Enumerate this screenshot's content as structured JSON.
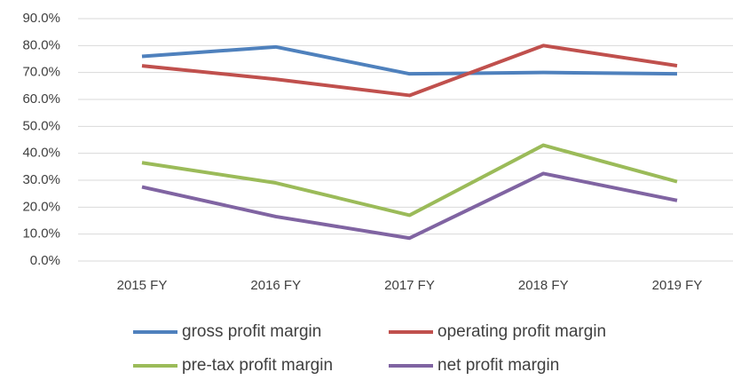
{
  "chart_data": {
    "type": "line",
    "categories": [
      "2015 FY",
      "2016 FY",
      "2017 FY",
      "2018 FY",
      "2019 FY"
    ],
    "series": [
      {
        "name": "gross profit margin",
        "color": "#4f81bd",
        "values": [
          76,
          79.5,
          69.5,
          70,
          69.5
        ]
      },
      {
        "name": "operating profit margin",
        "color": "#c0504d",
        "values": [
          72.5,
          67.5,
          61.5,
          80,
          72.5
        ]
      },
      {
        "name": "pre-tax profit margin",
        "color": "#9bbb59",
        "values": [
          36.5,
          29,
          17,
          43,
          29.5
        ]
      },
      {
        "name": "net profit margin",
        "color": "#8064a2",
        "values": [
          27.5,
          16.5,
          8.5,
          32.5,
          22.5
        ]
      }
    ],
    "ylim": [
      0,
      90
    ],
    "yticks": [
      {
        "value": 0,
        "label": "0.0%"
      },
      {
        "value": 10,
        "label": "10.0%"
      },
      {
        "value": 20,
        "label": "20.0%"
      },
      {
        "value": 30,
        "label": "30.0%"
      },
      {
        "value": 40,
        "label": "40.0%"
      },
      {
        "value": 50,
        "label": "50.0%"
      },
      {
        "value": 60,
        "label": "60.0%"
      },
      {
        "value": 70,
        "label": "70.0%"
      },
      {
        "value": 80,
        "label": "80.0%"
      },
      {
        "value": 90,
        "label": "90.0%"
      }
    ],
    "grid": true
  }
}
